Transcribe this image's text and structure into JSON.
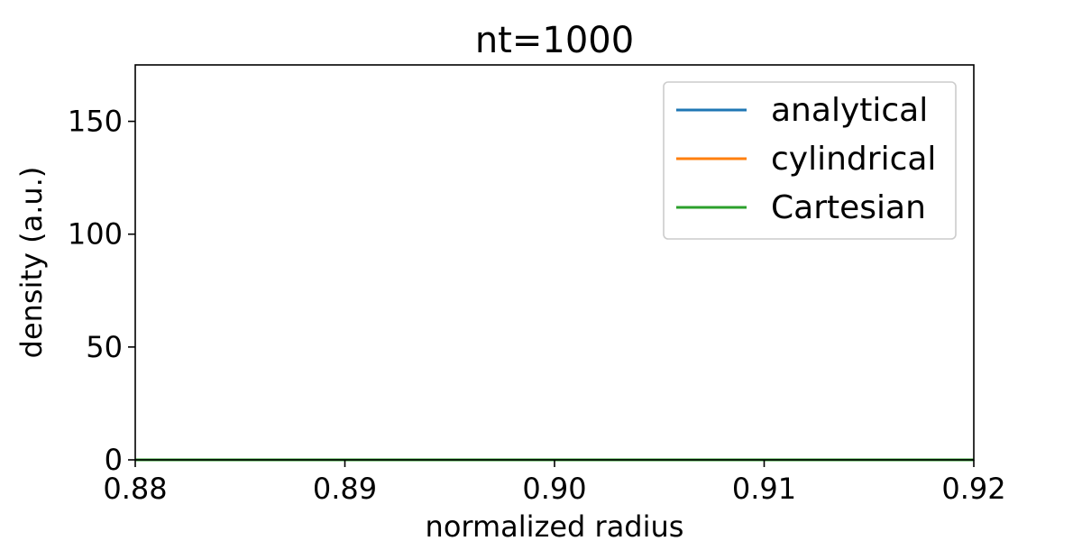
{
  "chart_data": {
    "type": "line",
    "title": "nt=1000",
    "xlabel": "normalized radius",
    "ylabel": "density (a.u.)",
    "xlim": [
      0.88,
      0.92
    ],
    "ylim": [
      0,
      175
    ],
    "xticks": [
      0.88,
      0.89,
      0.9,
      0.91,
      0.92
    ],
    "xtick_labels": [
      "0.88",
      "0.89",
      "0.90",
      "0.91",
      "0.92"
    ],
    "yticks": [
      0,
      50,
      100,
      150
    ],
    "ytick_labels": [
      "0",
      "50",
      "100",
      "150"
    ],
    "grid": false,
    "legend_position": "top-right",
    "series": [
      {
        "name": "analytical",
        "color": "#1f77b4",
        "x": [
          0.88,
          0.92
        ],
        "y": [
          0,
          0
        ]
      },
      {
        "name": "cylindrical",
        "color": "#ff7f0e",
        "x": [
          0.88,
          0.92
        ],
        "y": [
          0,
          0
        ]
      },
      {
        "name": "Cartesian",
        "color": "#2ca02c",
        "x": [
          0.88,
          0.92
        ],
        "y": [
          0,
          0
        ]
      }
    ]
  }
}
